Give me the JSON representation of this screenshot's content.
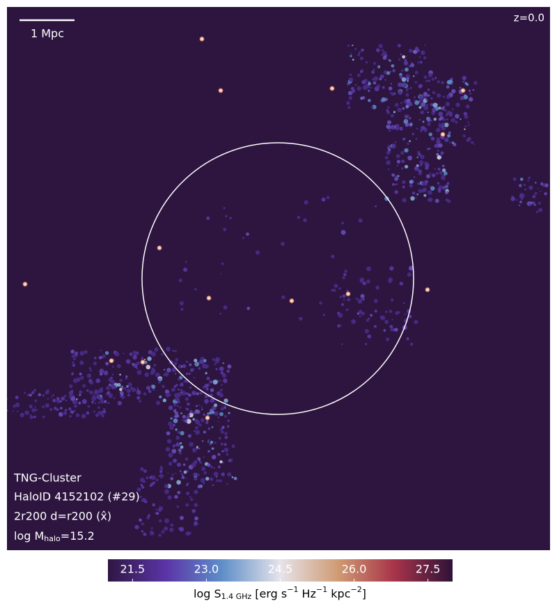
{
  "chart_data": {
    "type": "image",
    "scale_bar_label": "1 Mpc",
    "redshift_label": "z=0.0",
    "annotations": [
      "TNG-Cluster",
      "HaloID 4152102 (#29)",
      "2r200 d=r200 (x̂)"
    ],
    "mass_label": [
      "log M",
      "halo",
      "=15.2"
    ],
    "colorbar_label": [
      "log S",
      "1.4 GHz",
      " [erg s",
      "−1",
      " Hz",
      "−1",
      " kpc",
      "−2",
      "]"
    ],
    "clim": [
      21,
      28
    ],
    "cticks": [
      21.5,
      {
        "value": 23,
        "label": "23.0"
      },
      24.5,
      {
        "value": 26,
        "label": "26.0"
      },
      27.5
    ]
  }
}
